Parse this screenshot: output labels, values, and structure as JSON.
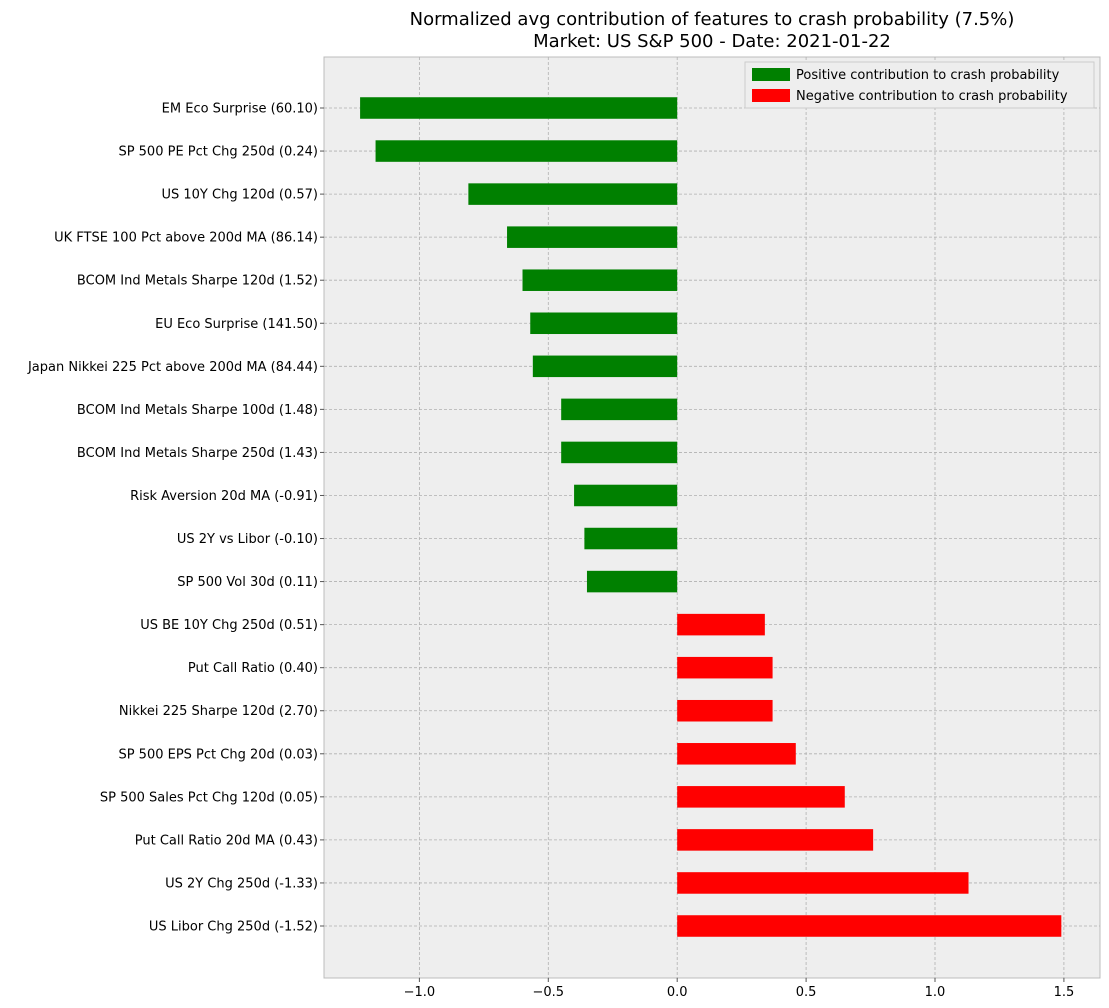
{
  "chart_data": {
    "type": "bar",
    "orientation": "horizontal",
    "title": "Normalized avg contribution of features to crash probability (7.5%)",
    "subtitle": "Market: US S&P 500 - Date: 2021-01-22",
    "xlabel": "",
    "ylabel": "",
    "xlim": [
      -1.37,
      1.64
    ],
    "x_ticks": [
      -1.0,
      -0.5,
      0.0,
      0.5,
      1.0,
      1.5
    ],
    "x_tick_labels": [
      "−1.0",
      "−0.5",
      "0.0",
      "0.5",
      "1.0",
      "1.5"
    ],
    "grid": true,
    "legend_position": "top-right",
    "legend": [
      {
        "label": "Positive contribution to crash probability",
        "color": "#008000"
      },
      {
        "label": "Negative contribution to crash probability",
        "color": "#ff0000"
      }
    ],
    "colors": {
      "positive": "#008000",
      "negative": "#ff0000"
    },
    "bars": [
      {
        "label": "EM Eco Surprise (60.10)",
        "value": -1.23,
        "sign": "positive"
      },
      {
        "label": "SP 500 PE Pct Chg 250d (0.24)",
        "value": -1.17,
        "sign": "positive"
      },
      {
        "label": "US 10Y Chg 120d (0.57)",
        "value": -0.81,
        "sign": "positive"
      },
      {
        "label": "UK FTSE 100 Pct above 200d MA (86.14)",
        "value": -0.66,
        "sign": "positive"
      },
      {
        "label": "BCOM Ind Metals Sharpe 120d (1.52)",
        "value": -0.6,
        "sign": "positive"
      },
      {
        "label": "EU Eco Surprise (141.50)",
        "value": -0.57,
        "sign": "positive"
      },
      {
        "label": "Japan Nikkei 225 Pct above 200d MA (84.44)",
        "value": -0.56,
        "sign": "positive"
      },
      {
        "label": "BCOM Ind Metals Sharpe 100d (1.48)",
        "value": -0.45,
        "sign": "positive"
      },
      {
        "label": "BCOM Ind Metals Sharpe 250d (1.43)",
        "value": -0.45,
        "sign": "positive"
      },
      {
        "label": "Risk Aversion 20d MA (-0.91)",
        "value": -0.4,
        "sign": "positive"
      },
      {
        "label": "US 2Y vs Libor (-0.10)",
        "value": -0.36,
        "sign": "positive"
      },
      {
        "label": "SP 500 Vol 30d (0.11)",
        "value": -0.35,
        "sign": "positive"
      },
      {
        "label": "US BE 10Y Chg 250d (0.51)",
        "value": 0.34,
        "sign": "negative"
      },
      {
        "label": "Put Call Ratio (0.40)",
        "value": 0.37,
        "sign": "negative"
      },
      {
        "label": "Nikkei 225 Sharpe 120d (2.70)",
        "value": 0.37,
        "sign": "negative"
      },
      {
        "label": "SP 500 EPS Pct Chg 20d (0.03)",
        "value": 0.46,
        "sign": "negative"
      },
      {
        "label": "SP 500 Sales Pct Chg 120d (0.05)",
        "value": 0.65,
        "sign": "negative"
      },
      {
        "label": "Put Call Ratio 20d MA (0.43)",
        "value": 0.76,
        "sign": "negative"
      },
      {
        "label": "US 2Y Chg 250d (-1.33)",
        "value": 1.13,
        "sign": "negative"
      },
      {
        "label": "US Libor Chg 250d (-1.52)",
        "value": 1.49,
        "sign": "negative"
      }
    ]
  }
}
